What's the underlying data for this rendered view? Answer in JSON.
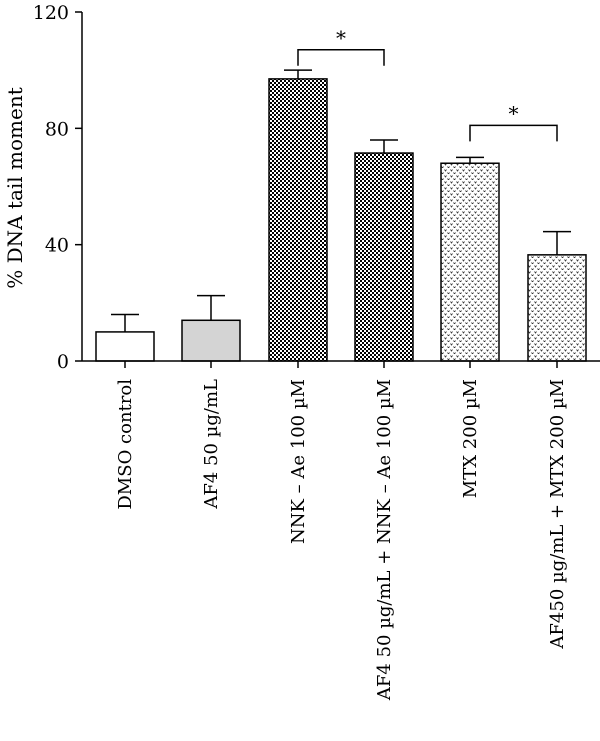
{
  "chart_data": {
    "type": "bar",
    "ylabel": "% DNA tail moment",
    "xlabel": "",
    "title": "",
    "ylim": [
      0,
      120
    ],
    "yticks": [
      0,
      40,
      80,
      120
    ],
    "categories": [
      "DMSO control",
      "AF4 50 µg/mL",
      "NNK – Ae 100 µM",
      "AF4 50 µg/mL + NNK – Ae 100 µM",
      "MTX 200 µM",
      "AF450 µg/mL + MTX 200 µM"
    ],
    "values": [
      10,
      14,
      97,
      71.5,
      68,
      36.5
    ],
    "errors": [
      6,
      8.5,
      3,
      4.5,
      2,
      8
    ],
    "fills": [
      "white",
      "gray",
      "checker",
      "checker",
      "dots",
      "dots"
    ],
    "colors": {
      "gray": "#d4d4d4",
      "bar_edge": "#000000"
    },
    "significance": [
      {
        "from": 2,
        "to": 3,
        "label": "*",
        "level": 107
      },
      {
        "from": 4,
        "to": 5,
        "label": "*",
        "level": 81
      }
    ]
  }
}
